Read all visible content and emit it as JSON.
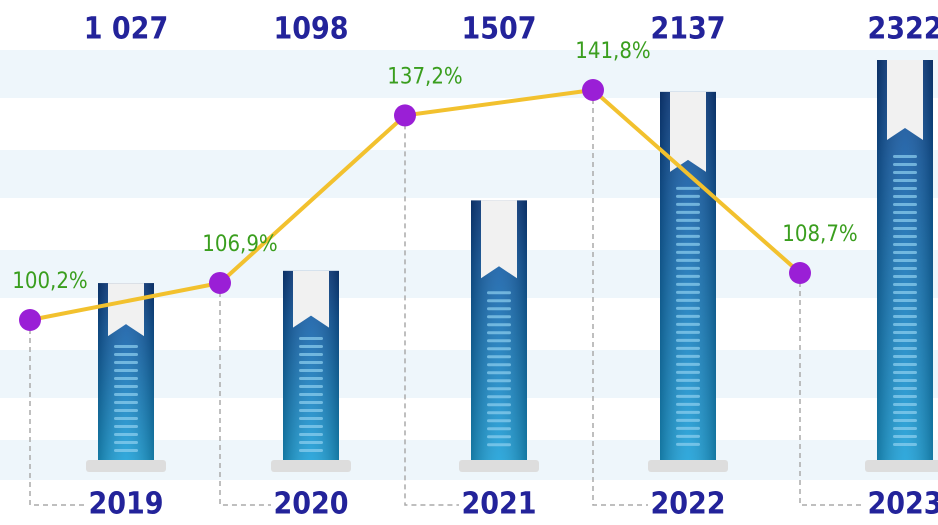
{
  "chart_data": {
    "type": "bar",
    "categories": [
      "2019",
      "2020",
      "2021",
      "2022",
      "2023"
    ],
    "series": [
      {
        "type": "bar",
        "color": "#1a86c4",
        "values": [
          1027,
          1098,
          1507,
          2137,
          2322
        ],
        "value_labels": [
          "1 027",
          "1098",
          "1507",
          "2137",
          "2322"
        ]
      },
      {
        "type": "line",
        "color": "#f2c12e",
        "marker_color": "#9a1fd6",
        "values": [
          100.2,
          106.9,
          137.2,
          141.8,
          108.7
        ],
        "value_labels": [
          "100,2%",
          "106,9%",
          "137,2%",
          "141,8%",
          "108,7%"
        ]
      }
    ]
  }
}
